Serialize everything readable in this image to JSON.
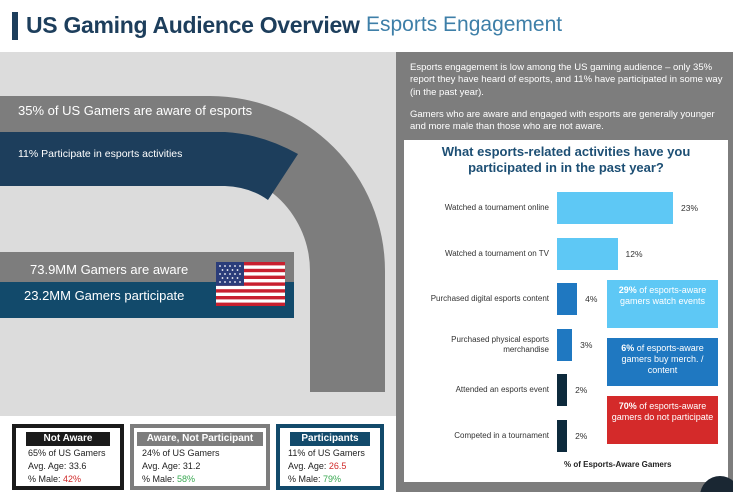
{
  "header": {
    "title": "US Gaming Audience Overview",
    "subtitle": "Esports Engagement"
  },
  "left": {
    "aware_pct_text": "35% of US Gamers are aware of esports",
    "participate_pct_text": "11% Participate in esports activities",
    "aware_count_text": "73.9MM Gamers are aware",
    "participate_count_text": "23.2MM Gamers participate"
  },
  "intro": {
    "paragraph1": "Esports engagement is low among the US gaming audience – only 35% report they have heard of esports, and 11% have participated in some way (in the past year).",
    "paragraph2": "Gamers who are aware and engaged with esports are generally younger and more male than those who are not aware."
  },
  "chart_data": {
    "type": "bar",
    "orientation": "horizontal",
    "title": "What esports-related activities have you participated in in the past year?",
    "xlabel": "% of Esports-Aware Gamers",
    "categories": [
      "Watched a tournament online",
      "Watched a tournament on TV",
      "Purchased digital esports content",
      "Purchased physical esports merchandise",
      "Attended an esports event",
      "Competed in a tournament"
    ],
    "values": [
      23,
      12,
      4,
      3,
      2,
      2
    ],
    "value_labels": [
      "23%",
      "12%",
      "4%",
      "3%",
      "2%",
      "2%"
    ],
    "bar_colors": [
      "#5ec8f5",
      "#5ec8f5",
      "#1f78c1",
      "#1f78c1",
      "#0d2a3c",
      "#0d2a3c"
    ],
    "xlim": [
      0,
      23
    ]
  },
  "callouts": [
    {
      "pct": "29%",
      "text": " of esports-aware gamers watch events",
      "color": "#5ec8f5"
    },
    {
      "pct": "6%",
      "text": " of esports-aware gamers buy merch. / content",
      "color": "#1f78c1"
    },
    {
      "pct": "70%",
      "text": " of esports-aware gamers do not participate",
      "color": "#d42a2a"
    }
  ],
  "segments": [
    {
      "label": "Not Aware",
      "share": "65% of US Gamers",
      "age_label": "Avg. Age:",
      "age": "33.6",
      "male_label": "% Male:",
      "male": "42%",
      "head_color": "#1a1a1a",
      "border_color": "#1a1a1a"
    },
    {
      "label": "Aware, Not Participant",
      "share": "24% of US Gamers",
      "age_label": "Avg. Age:",
      "age": "31.2",
      "male_label": "% Male:",
      "male": "58%",
      "head_color": "#7d7d7d",
      "border_color": "#7d7d7d"
    },
    {
      "label": "Participants",
      "share": "11% of US Gamers",
      "age_label": "Avg. Age:",
      "age": "26.5",
      "male_label": "% Male:",
      "male": "79%",
      "head_color": "#124a6b",
      "border_color": "#124a6b"
    }
  ],
  "colors": {
    "navy": "#1d3e5c",
    "gray": "#7d7d7d",
    "blue": "#124a6b"
  }
}
